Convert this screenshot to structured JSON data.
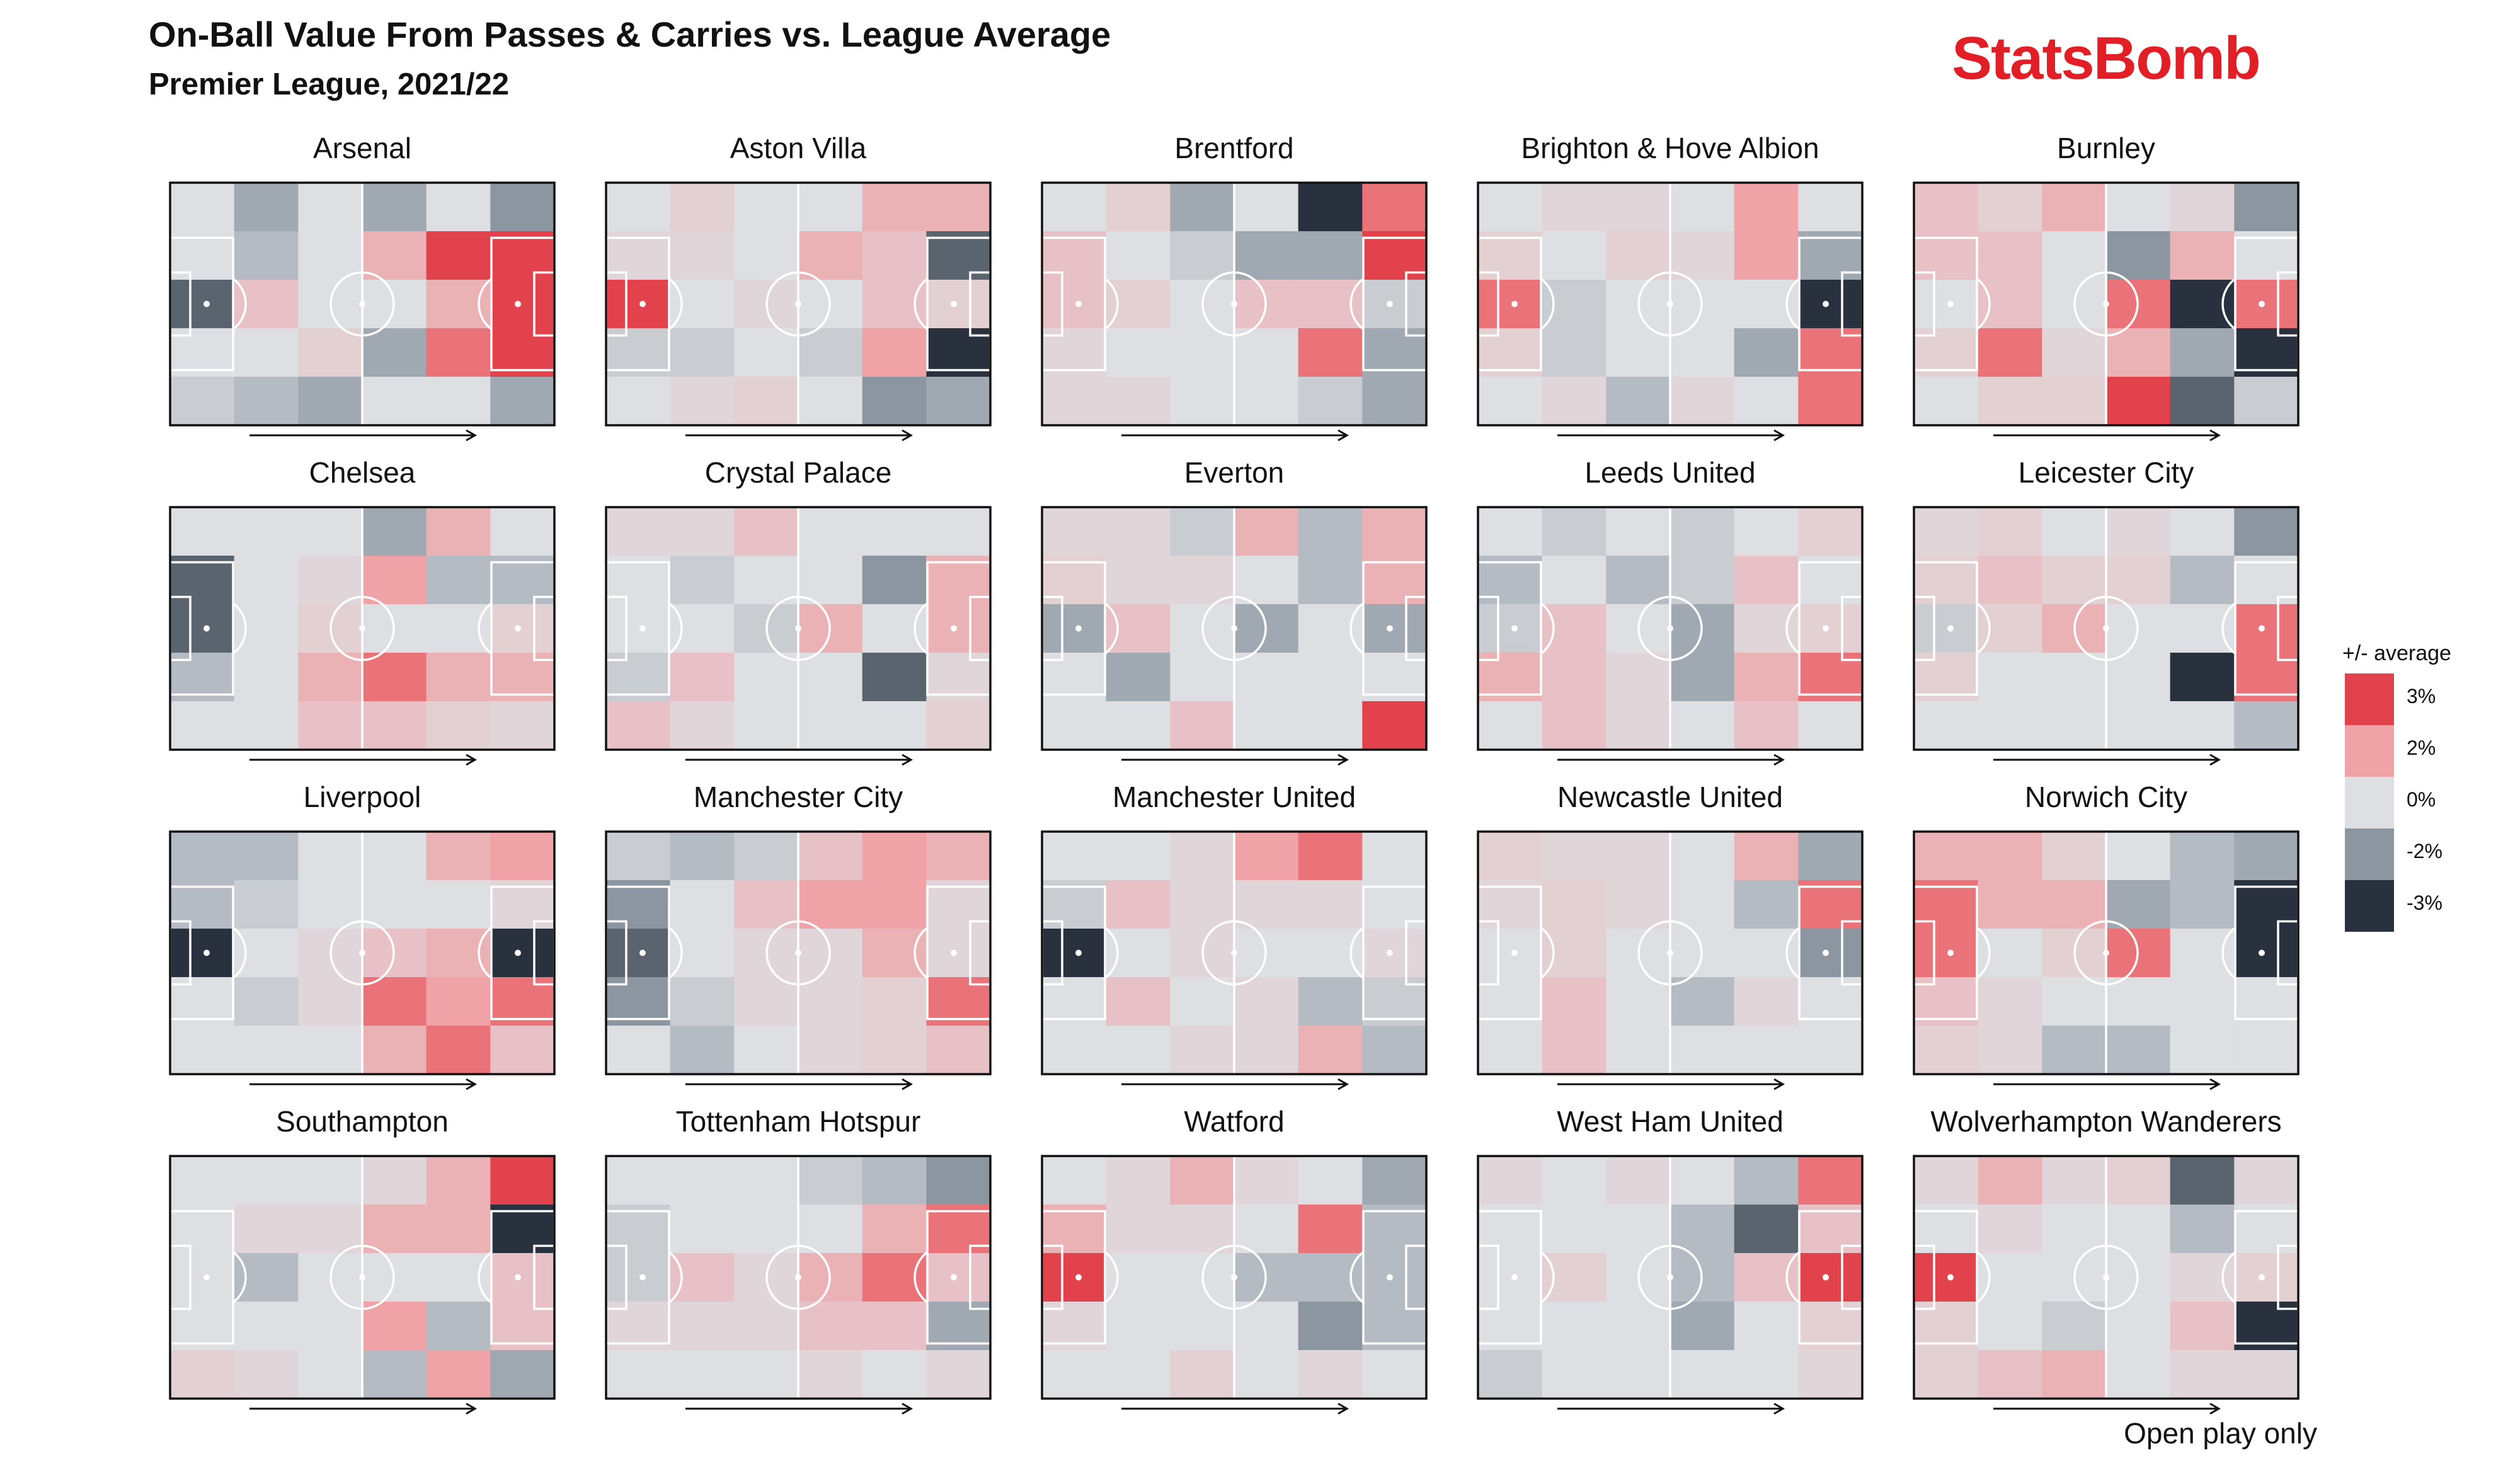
{
  "header": {
    "title": "On-Ball Value From Passes & Carries vs. League Average",
    "subtitle": "Premier League, 2021/22"
  },
  "brand": {
    "logo_text": "StatsBomb",
    "color": "#e21f26"
  },
  "footnote": "Open play only",
  "legend": {
    "title": "+/- average",
    "items": [
      {
        "label": "3%",
        "value": 3,
        "color": "#e2424b"
      },
      {
        "label": "2%",
        "value": 2,
        "color": "#f0a3a7"
      },
      {
        "label": "0%",
        "value": 0,
        "color": "#dddfe2"
      },
      {
        "label": "-2%",
        "value": -2,
        "color": "#8c96a1"
      },
      {
        "label": "-3%",
        "value": -3,
        "color": "#28313d"
      }
    ]
  },
  "chart_data": {
    "type": "heatmap",
    "grid": {
      "columns": 6,
      "rows": 5
    },
    "attack_direction": "left-to-right",
    "value_unit": "% vs league average",
    "color_scale": [
      "#28313d",
      "#8c96a1",
      "#dddfe2",
      "#f0a3a7",
      "#e2424b"
    ],
    "teams": [
      {
        "name": "Arsenal",
        "cells": [
          [
            0,
            -1.5,
            0,
            -1.5,
            0,
            -2
          ],
          [
            0,
            -1,
            0,
            1.5,
            3,
            3
          ],
          [
            -2.5,
            1,
            0,
            0,
            1.5,
            3
          ],
          [
            0,
            0,
            0.5,
            -1.5,
            2.5,
            3
          ],
          [
            -0.5,
            -1,
            -1.5,
            0,
            0,
            -1.5
          ]
        ]
      },
      {
        "name": "Aston Villa",
        "cells": [
          [
            0,
            0.5,
            0,
            0,
            1.5,
            1.5
          ],
          [
            0.3,
            0.3,
            0,
            1.5,
            1,
            -2.5
          ],
          [
            3,
            0,
            0.3,
            0,
            1,
            0.5
          ],
          [
            -0.5,
            -0.5,
            0,
            -0.5,
            2,
            -3
          ],
          [
            0,
            0.3,
            0.5,
            0,
            -2,
            -1.5
          ]
        ]
      },
      {
        "name": "Brentford",
        "cells": [
          [
            0,
            0.5,
            -1.5,
            0,
            -3,
            2.5
          ],
          [
            1,
            0,
            -0.5,
            -1.5,
            -1.5,
            3
          ],
          [
            1,
            0.5,
            0,
            1,
            1,
            -0.5
          ],
          [
            0.3,
            0,
            0,
            0,
            2.5,
            -1.5
          ],
          [
            0.3,
            0.3,
            0,
            0,
            -0.5,
            -1.5
          ]
        ]
      },
      {
        "name": "Brighton & Hove Albion",
        "cells": [
          [
            0,
            0.3,
            0.3,
            0,
            2,
            0
          ],
          [
            0.5,
            0,
            0.5,
            0.3,
            2,
            -1.5
          ],
          [
            2.5,
            -0.5,
            0,
            0,
            0,
            -3
          ],
          [
            0.5,
            -0.5,
            0,
            0,
            -1.5,
            2.5
          ],
          [
            0,
            0.3,
            -1,
            0.3,
            0,
            2.5
          ]
        ]
      },
      {
        "name": "Burnley",
        "cells": [
          [
            1,
            0.5,
            1.5,
            0,
            0.3,
            -2
          ],
          [
            1,
            1,
            0,
            -2,
            1.5,
            0
          ],
          [
            0,
            1,
            0,
            2.5,
            -3,
            2.5
          ],
          [
            0.5,
            2.5,
            0.3,
            1.5,
            -1.5,
            -3
          ],
          [
            0,
            0.5,
            0.5,
            3,
            -2.5,
            -0.5
          ]
        ]
      },
      {
        "name": "Chelsea",
        "cells": [
          [
            0,
            0,
            0,
            -1.5,
            1.5,
            0
          ],
          [
            -2.5,
            0,
            0.3,
            2,
            -1,
            -1
          ],
          [
            -2.5,
            0,
            0.5,
            0,
            0,
            0.5
          ],
          [
            -1,
            0,
            1.5,
            2.5,
            1.5,
            1.5
          ],
          [
            0,
            0,
            1,
            1,
            0.5,
            0.3
          ]
        ]
      },
      {
        "name": "Crystal Palace",
        "cells": [
          [
            0.3,
            0.3,
            1,
            0,
            0,
            0
          ],
          [
            0,
            -0.5,
            0,
            0,
            -2,
            1.5
          ],
          [
            0,
            0,
            -0.5,
            1.5,
            0,
            1.5
          ],
          [
            -0.5,
            1,
            0,
            0,
            -2.5,
            0.3
          ],
          [
            1,
            0.3,
            0,
            0,
            0,
            0.5
          ]
        ]
      },
      {
        "name": "Everton",
        "cells": [
          [
            0.3,
            0.3,
            -0.5,
            1.5,
            -1,
            1.5
          ],
          [
            0.5,
            0.3,
            0.3,
            0,
            -1,
            1.5
          ],
          [
            -1.5,
            1,
            0,
            -1.5,
            0,
            -1.5
          ],
          [
            0,
            -1.5,
            0,
            0,
            0,
            0
          ],
          [
            0,
            0,
            1,
            0,
            0,
            3
          ]
        ]
      },
      {
        "name": "Leeds United",
        "cells": [
          [
            0,
            -0.5,
            0,
            -0.5,
            0,
            0.5
          ],
          [
            -1,
            0,
            -1,
            -0.5,
            1,
            0
          ],
          [
            -0.5,
            1,
            0,
            -1.5,
            0.3,
            0.5
          ],
          [
            1.5,
            1,
            0.3,
            -1.5,
            1.5,
            2.5
          ],
          [
            0,
            1,
            0.3,
            0,
            1,
            0
          ]
        ]
      },
      {
        "name": "Leicester City",
        "cells": [
          [
            0.3,
            0.5,
            0,
            0.3,
            0,
            -2
          ],
          [
            0.5,
            1,
            0.5,
            0.5,
            -1,
            0
          ],
          [
            -0.5,
            0.5,
            1.5,
            0,
            0,
            2.5
          ],
          [
            0.5,
            0,
            0,
            0,
            -3,
            2.5
          ],
          [
            0,
            0,
            0,
            0,
            0,
            -1
          ]
        ]
      },
      {
        "name": "Liverpool",
        "cells": [
          [
            -1,
            -1,
            0,
            0,
            1.5,
            2
          ],
          [
            -1,
            -0.5,
            0,
            0,
            0,
            0.3
          ],
          [
            -3,
            0,
            0.3,
            1,
            1.5,
            -3
          ],
          [
            0,
            -0.5,
            0.3,
            2.5,
            2,
            2.5
          ],
          [
            0,
            0,
            0,
            1.5,
            2.5,
            1
          ]
        ]
      },
      {
        "name": "Manchester City",
        "cells": [
          [
            -0.5,
            -1,
            -0.5,
            1,
            2,
            1.5
          ],
          [
            -2,
            0,
            1,
            2,
            2,
            0.3
          ],
          [
            -2.5,
            0,
            0.3,
            0.3,
            1.5,
            0.3
          ],
          [
            -2,
            -0.5,
            0.3,
            0.3,
            0.5,
            2.5
          ],
          [
            0,
            -1,
            0,
            0.3,
            0.5,
            1
          ]
        ]
      },
      {
        "name": "Manchester United",
        "cells": [
          [
            0,
            0,
            0.3,
            2,
            2.5,
            0
          ],
          [
            -0.5,
            1,
            0.3,
            0.3,
            0.3,
            0
          ],
          [
            -3,
            0,
            0.3,
            0,
            0,
            0.3
          ],
          [
            0,
            1,
            0,
            0.3,
            -1,
            -0.5
          ],
          [
            0,
            0,
            0.3,
            0.3,
            1.5,
            -1
          ]
        ]
      },
      {
        "name": "Newcastle United",
        "cells": [
          [
            0.5,
            0.3,
            0.3,
            0,
            1.5,
            -1.5
          ],
          [
            0.3,
            0.5,
            0.3,
            0,
            -1,
            2.5
          ],
          [
            0,
            0.5,
            0,
            0,
            0,
            -2
          ],
          [
            0,
            1,
            0,
            -1,
            0.3,
            0
          ],
          [
            0,
            1,
            0,
            0,
            0,
            0
          ]
        ]
      },
      {
        "name": "Norwich City",
        "cells": [
          [
            1.5,
            1.5,
            0.5,
            0,
            -1,
            -1.5
          ],
          [
            2.5,
            1.5,
            1.5,
            -1.5,
            -1,
            -3
          ],
          [
            2.5,
            0,
            0.5,
            2.5,
            0,
            -3
          ],
          [
            1,
            0.3,
            0,
            0,
            0,
            0
          ],
          [
            0.5,
            0.3,
            -1,
            -1,
            0,
            0
          ]
        ]
      },
      {
        "name": "Southampton",
        "cells": [
          [
            0,
            0,
            0,
            0.3,
            1.5,
            3
          ],
          [
            0,
            0.3,
            0.3,
            1.5,
            1.5,
            -3
          ],
          [
            0,
            -1,
            0,
            0,
            0,
            1
          ],
          [
            0,
            0,
            0,
            2,
            -1,
            1
          ],
          [
            0.5,
            0.3,
            0,
            -1,
            2,
            -1.5
          ]
        ]
      },
      {
        "name": "Tottenham Hotspur",
        "cells": [
          [
            0,
            0,
            0,
            -0.5,
            -1,
            -2
          ],
          [
            -0.5,
            0,
            0,
            0,
            1.5,
            2.5
          ],
          [
            -0.5,
            1,
            0.3,
            1.5,
            2.5,
            1
          ],
          [
            0.3,
            0.3,
            0.3,
            1,
            1,
            -1.5
          ],
          [
            0,
            0,
            0,
            0.3,
            0,
            0.3
          ]
        ]
      },
      {
        "name": "Watford",
        "cells": [
          [
            0,
            0.3,
            1.5,
            0.3,
            0,
            -1.5
          ],
          [
            1.5,
            0.3,
            0.3,
            0,
            2.5,
            -1
          ],
          [
            3,
            0,
            0,
            -1,
            -1,
            -1
          ],
          [
            0.3,
            0,
            0,
            0,
            -2,
            -1
          ],
          [
            0,
            0,
            0.5,
            0,
            0.3,
            0
          ]
        ]
      },
      {
        "name": "West Ham United",
        "cells": [
          [
            0.3,
            0,
            0.3,
            0,
            -1,
            2.5
          ],
          [
            0,
            0,
            0,
            -1,
            -2.5,
            1
          ],
          [
            0,
            0.5,
            0,
            -1,
            1,
            3
          ],
          [
            0,
            0,
            0,
            -1.5,
            0,
            0.5
          ],
          [
            -0.5,
            0,
            0,
            0,
            0,
            0.3
          ]
        ]
      },
      {
        "name": "Wolverhampton Wanderers",
        "cells": [
          [
            0.3,
            1.5,
            0.3,
            0.5,
            -2.5,
            0.3
          ],
          [
            0,
            0.3,
            0,
            0,
            -1,
            0
          ],
          [
            3,
            0,
            0,
            0,
            0.3,
            0.5
          ],
          [
            0.5,
            0,
            -0.5,
            0,
            1,
            -3
          ],
          [
            0.5,
            1,
            1.5,
            0,
            0.3,
            0.3
          ]
        ]
      }
    ]
  }
}
